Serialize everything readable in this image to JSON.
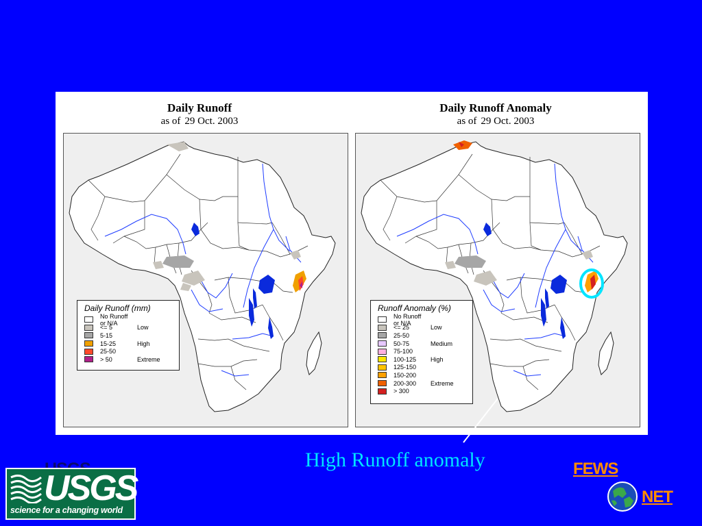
{
  "maps": {
    "left": {
      "title": "Daily Runoff",
      "date_prefix": "as of",
      "date": "29 Oct. 2003",
      "legend": {
        "title": "Daily Runoff (mm)",
        "items": [
          {
            "label": "No Runoff or N/A",
            "class": "",
            "color": "#ffffff"
          },
          {
            "label": "<= 5",
            "class": "Low",
            "color": "#c8c4bc"
          },
          {
            "label": "5-15",
            "class": "",
            "color": "#a6a6a6"
          },
          {
            "label": "15-25",
            "class": "High",
            "color": "#f0a000"
          },
          {
            "label": "25-50",
            "class": "",
            "color": "#ff4a2a"
          },
          {
            "label": "> 50",
            "class": "Extreme",
            "color": "#b0208a"
          }
        ]
      }
    },
    "right": {
      "title": "Daily Runoff Anomaly",
      "date_prefix": "as of",
      "date": "29 Oct. 2003",
      "legend": {
        "title": "Runoff Anomaly (%)",
        "items": [
          {
            "label": "No Runoff or N/A",
            "class": "",
            "color": "#ffffff"
          },
          {
            "label": "<= 25",
            "class": "Low",
            "color": "#c8c4bc"
          },
          {
            "label": "25-50",
            "class": "",
            "color": "#a6a6a6"
          },
          {
            "label": "50-75",
            "class": "Medium",
            "color": "#e6c8ff"
          },
          {
            "label": "75-100",
            "class": "",
            "color": "#ffb0e0"
          },
          {
            "label": "100-125",
            "class": "High",
            "color": "#ffe800"
          },
          {
            "label": "125-150",
            "class": "",
            "color": "#ffc400"
          },
          {
            "label": "150-200",
            "class": "",
            "color": "#ffa000"
          },
          {
            "label": "200-300",
            "class": "Extreme",
            "color": "#f06000"
          },
          {
            "label": "> 300",
            "class": "",
            "color": "#d42020"
          }
        ]
      }
    }
  },
  "caption": "High Runoff anomaly",
  "logos": {
    "usgs_ghost": "USGS",
    "usgs_wordmark": "USGS",
    "usgs_tagline": "science for a changing world",
    "fews": "FEWS",
    "net": "NET"
  },
  "colors": {
    "background": "#0000ff",
    "caption": "#00e5ff",
    "highlight_ring": "#00e5ff",
    "rivers": "#1e3cff",
    "lakes": "#0a2adc",
    "fews_net": "#ff8c00",
    "usgs_green": "#0a6e45"
  },
  "icons": {
    "usgs": "usgs-wave-icon",
    "fews_net": "globe-icon"
  }
}
